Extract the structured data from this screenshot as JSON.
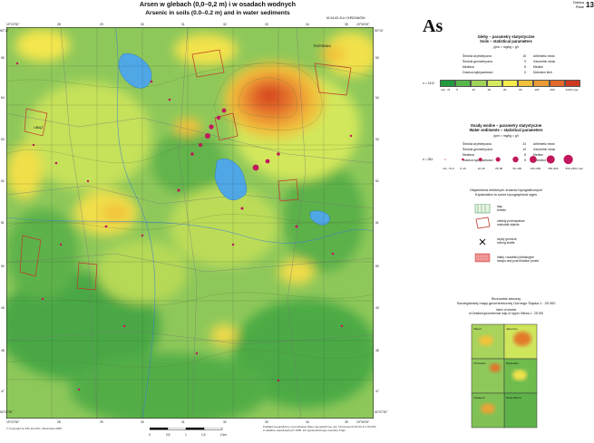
{
  "title_pl": "Arsen w glebach (0,0–0,2 m) i w osadach wodnych",
  "title_en": "Arsenic in soils (0.0–0.2 m) and in water sediments",
  "sheet_id": "M-34-63-D-b CHRZANÓW",
  "plate_label_pl": "Tablica",
  "plate_label_en": "Plate",
  "plate_number": "13",
  "element_symbol": "As",
  "map": {
    "town_label": "TRZEBINIA",
    "town_label_left": "LIBIĄŻ",
    "top_ticks": [
      "19°22'30\"",
      "28",
      "29",
      "30",
      "31",
      "32",
      "33",
      "34",
      "35",
      "19°30'00\""
    ],
    "bottom_ticks": [
      "19°22'30\"",
      "28",
      "29",
      "30",
      "31",
      "32",
      "33",
      "34",
      "35",
      "19°30'00\""
    ],
    "left_ticks": [
      "50°10'",
      "55",
      "54",
      "53",
      "52",
      "51",
      "50",
      "49",
      "48",
      "47",
      "50°07'30\""
    ],
    "right_ticks": [
      "50°10'",
      "55",
      "54",
      "53",
      "52",
      "51",
      "50",
      "49",
      "48",
      "47",
      "50°07'30\""
    ]
  },
  "soils": {
    "title_pl": "Gleby – parametry statystyczne",
    "title_en": "Soils – statistical parameters",
    "unit": "ppm = mg/kg = g/t",
    "stats": [
      {
        "pl": "Średnia arytmetyczna",
        "value": "15",
        "en": "Arithmetic mean"
      },
      {
        "pl": "Średnia geometryczna",
        "value": "9",
        "en": "Geometric mean"
      },
      {
        "pl": "Mediana",
        "value": "8",
        "en": "Median"
      },
      {
        "pl": "Granica wykrywalności",
        "value": "5",
        "en": "Detection limit"
      }
    ],
    "n_label": "n = 1312",
    "scale_colors": [
      "#1f9a3c",
      "#57b84a",
      "#9fd35a",
      "#d7e95e",
      "#f6ec4c",
      "#f2c23a",
      "#ec9a35",
      "#e26a2c",
      "#cf3a1f"
    ],
    "scale_labels": [
      "min. <5",
      "5",
      "10",
      "20",
      "40",
      "60",
      "100",
      "200",
      "4132 max."
    ]
  },
  "sediments": {
    "title_pl": "Osady wodne – parametry statystyczne",
    "title_en": "Water sediments – statistical parameters",
    "unit": "ppm = mg/kg = g/t",
    "stats": [
      {
        "pl": "Średnia arytmetyczna",
        "value": "24",
        "en": "Arithmetic mean"
      },
      {
        "pl": "Średnia geometryczna",
        "value": "10",
        "en": "Geometric mean"
      },
      {
        "pl": "Mediana",
        "value": "8",
        "en": "Median"
      },
      {
        "pl": "Granica wykrywalności",
        "value": "5",
        "en": "Detection limit"
      }
    ],
    "n_label": "n = 283",
    "class_labels": [
      "min. <5–5",
      "5–10",
      "10–25",
      "25–50",
      "50–100",
      "100–250",
      "250–500",
      "500–2361 max."
    ],
    "dot_color": "#c2185b"
  },
  "topo": {
    "title_pl": "Objaśnienia niektórych znaków topograficznych",
    "title_en": "Explanation to some topographical signs",
    "items": [
      {
        "pl": "lasy",
        "en": "forests"
      },
      {
        "pl": "obiekty przemysłowe",
        "en": "industrial objects"
      },
      {
        "pl": "szyby górnicze",
        "en": "mining shafts"
      },
      {
        "pl": "hałdy i osadniki poflotacyjne",
        "en": "dumps and post-flotation ponds"
      }
    ]
  },
  "index_map": {
    "title_pl": "Skorowidz arkuszy",
    "subtitle_pl": "Szczegółowej mapy geochemicznej Górnego Śląska 1 : 25 000",
    "title_en": "Index of sheets",
    "subtitle_en": "of Detailed geochemical map of Upper Silesia 1 : 25 000",
    "sheets": [
      "Olkusz",
      "Jaworzno",
      "Chrzanów",
      "Mysłowice",
      "Nowy Bieruń",
      "Oświęcim"
    ]
  },
  "scale": {
    "labels": [
      "0",
      "0,5",
      "1",
      "1,5",
      "2 km"
    ]
  },
  "copyright": "© Copyright by PIG and PIG, Warszawa 2008",
  "footnote": "Podkład topograficzny na podstawie Mapy topograficznej, ark. Chrzanów M-34-63-D 1:50 000 w układzie współrzędnych 1965. Za zgodą Głównego Geodety Kraju."
}
